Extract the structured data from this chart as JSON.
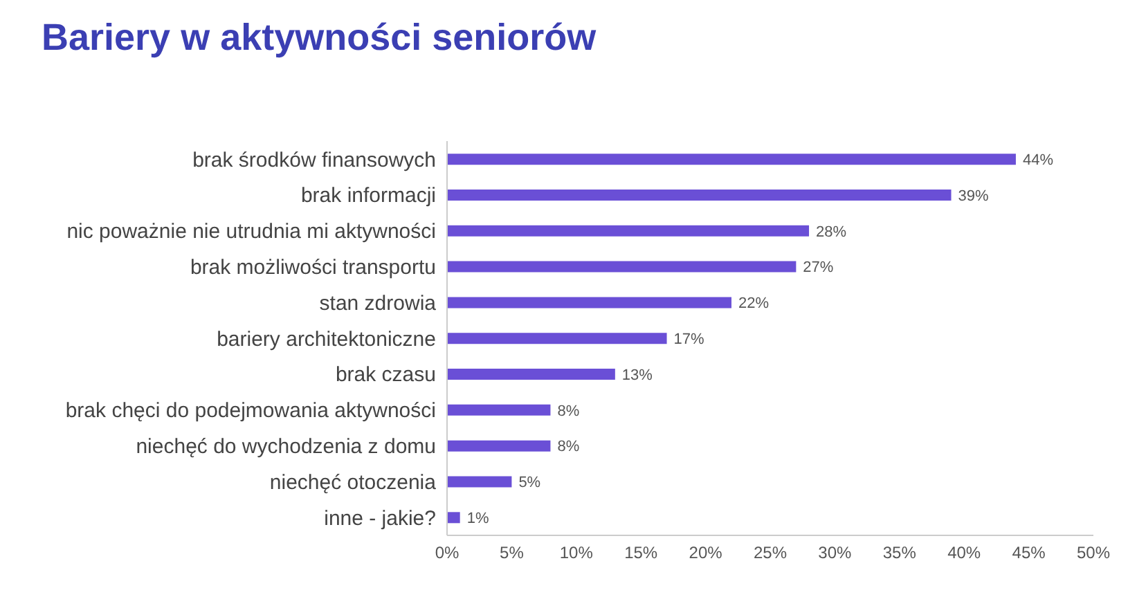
{
  "chart_data": {
    "type": "bar",
    "orientation": "horizontal",
    "title": "Bariery w aktywności seniorów",
    "categories": [
      "brak środków finansowych",
      "brak informacji",
      "nic poważnie nie utrudnia mi aktywności",
      "brak możliwości transportu",
      "stan zdrowia",
      "bariery architektoniczne",
      "brak czasu",
      "brak chęci do podejmowania aktywności",
      "niechęć do wychodzenia z domu",
      "niechęć otoczenia",
      "inne - jakie?"
    ],
    "values": [
      44,
      39,
      28,
      27,
      22,
      17,
      13,
      8,
      8,
      5,
      1
    ],
    "value_labels": [
      "44%",
      "39%",
      "28%",
      "27%",
      "22%",
      "17%",
      "13%",
      "8%",
      "8%",
      "5%",
      "1%"
    ],
    "color": "#6a4fd6",
    "xlim": [
      0,
      50
    ],
    "xticks": [
      {
        "value": 0,
        "label": "0%"
      },
      {
        "value": 5,
        "label": "5%"
      },
      {
        "value": 10,
        "label": "10%"
      },
      {
        "value": 15,
        "label": "15%"
      },
      {
        "value": 20,
        "label": "20%"
      },
      {
        "value": 25,
        "label": "25%"
      },
      {
        "value": 30,
        "label": "30%"
      },
      {
        "value": 35,
        "label": "35%"
      },
      {
        "value": 40,
        "label": "40%"
      },
      {
        "value": 45,
        "label": "45%"
      },
      {
        "value": 50,
        "label": "50%"
      }
    ],
    "grid": false
  }
}
